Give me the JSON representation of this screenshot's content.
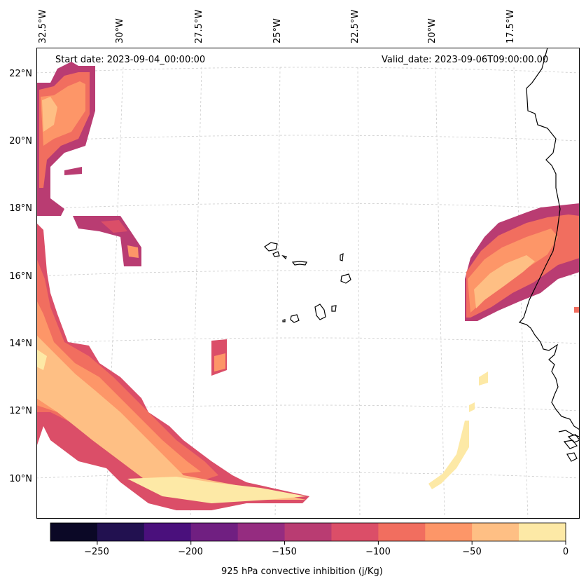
{
  "header": {
    "start_date": "Start date: 2023-09-04_00:00:00",
    "valid_date": "Valid_date: 2023-09-06T09:00:00.00"
  },
  "map": {
    "longitude_labels": [
      "32.5°W",
      "30°W",
      "27.5°W",
      "25°W",
      "22.5°W",
      "20°W",
      "17.5°W"
    ],
    "latitude_labels": [
      "22°N",
      "20°N",
      "18°N",
      "16°N",
      "14°N",
      "12°N",
      "10°N"
    ],
    "gridlines": true,
    "features": [
      "Cape Verde islands",
      "West African coastline"
    ]
  },
  "colorbar": {
    "label": "925 hPa convective inhibition (j/Kg)",
    "tick_labels": [
      "−250",
      "−200",
      "−150",
      "−100",
      "−50",
      "0"
    ],
    "range": [
      -275,
      0
    ],
    "step": 25,
    "colors": [
      "#0b0826",
      "#221150",
      "#4a107c",
      "#701f81",
      "#952c80",
      "#b93c72",
      "#db4e68",
      "#f16e5f",
      "#fd9668",
      "#febf84",
      "#fde9a6"
    ]
  }
}
